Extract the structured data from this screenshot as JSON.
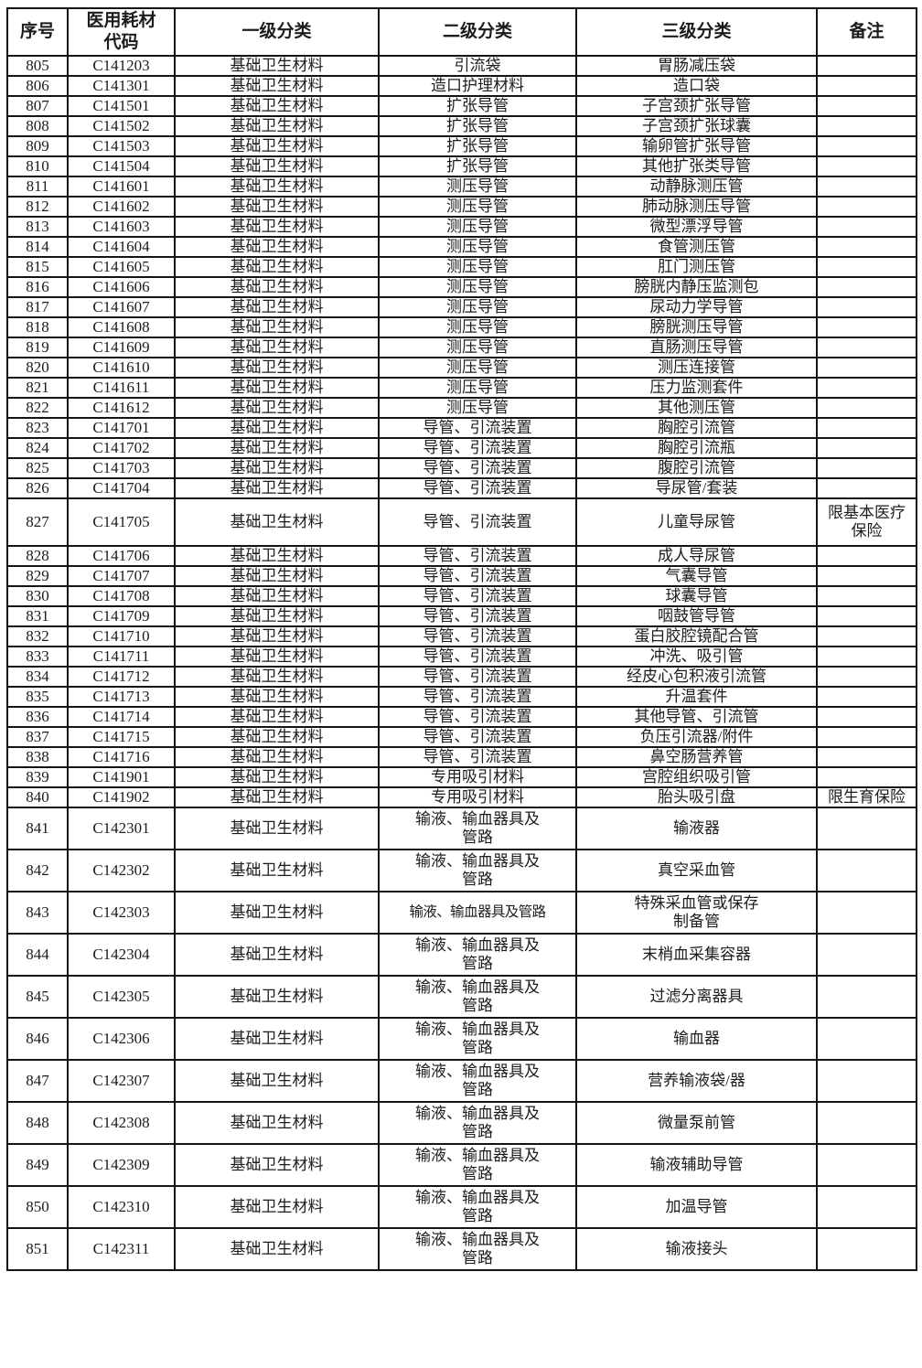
{
  "page": {
    "background": "#ffffff",
    "border_color": "#141414",
    "text_color": "#1c1c1c"
  },
  "table": {
    "columns": [
      "序号",
      "医用耗材\n代码",
      "一级分类",
      "二级分类",
      "三级分类",
      "备注"
    ],
    "rows": [
      {
        "no": "805",
        "code": "C141203",
        "l1": "基础卫生材料",
        "l2": "引流袋",
        "l3": "胃肠减压袋",
        "note": "",
        "size": "s"
      },
      {
        "no": "806",
        "code": "C141301",
        "l1": "基础卫生材料",
        "l2": "造口护理材料",
        "l3": "造口袋",
        "note": "",
        "size": "s"
      },
      {
        "no": "807",
        "code": "C141501",
        "l1": "基础卫生材料",
        "l2": "扩张导管",
        "l3": "子宫颈扩张导管",
        "note": "",
        "size": "s"
      },
      {
        "no": "808",
        "code": "C141502",
        "l1": "基础卫生材料",
        "l2": "扩张导管",
        "l3": "子宫颈扩张球囊",
        "note": "",
        "size": "s"
      },
      {
        "no": "809",
        "code": "C141503",
        "l1": "基础卫生材料",
        "l2": "扩张导管",
        "l3": "输卵管扩张导管",
        "note": "",
        "size": "s"
      },
      {
        "no": "810",
        "code": "C141504",
        "l1": "基础卫生材料",
        "l2": "扩张导管",
        "l3": "其他扩张类导管",
        "note": "",
        "size": "s"
      },
      {
        "no": "811",
        "code": "C141601",
        "l1": "基础卫生材料",
        "l2": "测压导管",
        "l3": "动静脉测压管",
        "note": "",
        "size": "s"
      },
      {
        "no": "812",
        "code": "C141602",
        "l1": "基础卫生材料",
        "l2": "测压导管",
        "l3": "肺动脉测压导管",
        "note": "",
        "size": "s"
      },
      {
        "no": "813",
        "code": "C141603",
        "l1": "基础卫生材料",
        "l2": "测压导管",
        "l3": "微型漂浮导管",
        "note": "",
        "size": "s"
      },
      {
        "no": "814",
        "code": "C141604",
        "l1": "基础卫生材料",
        "l2": "测压导管",
        "l3": "食管测压管",
        "note": "",
        "size": "s"
      },
      {
        "no": "815",
        "code": "C141605",
        "l1": "基础卫生材料",
        "l2": "测压导管",
        "l3": "肛门测压管",
        "note": "",
        "size": "s"
      },
      {
        "no": "816",
        "code": "C141606",
        "l1": "基础卫生材料",
        "l2": "测压导管",
        "l3": "膀胱内静压监测包",
        "note": "",
        "size": "s"
      },
      {
        "no": "817",
        "code": "C141607",
        "l1": "基础卫生材料",
        "l2": "测压导管",
        "l3": "尿动力学导管",
        "note": "",
        "size": "s"
      },
      {
        "no": "818",
        "code": "C141608",
        "l1": "基础卫生材料",
        "l2": "测压导管",
        "l3": "膀胱测压导管",
        "note": "",
        "size": "s"
      },
      {
        "no": "819",
        "code": "C141609",
        "l1": "基础卫生材料",
        "l2": "测压导管",
        "l3": "直肠测压导管",
        "note": "",
        "size": "s"
      },
      {
        "no": "820",
        "code": "C141610",
        "l1": "基础卫生材料",
        "l2": "测压导管",
        "l3": "测压连接管",
        "note": "",
        "size": "s"
      },
      {
        "no": "821",
        "code": "C141611",
        "l1": "基础卫生材料",
        "l2": "测压导管",
        "l3": "压力监测套件",
        "note": "",
        "size": "s"
      },
      {
        "no": "822",
        "code": "C141612",
        "l1": "基础卫生材料",
        "l2": "测压导管",
        "l3": "其他测压管",
        "note": "",
        "size": "s"
      },
      {
        "no": "823",
        "code": "C141701",
        "l1": "基础卫生材料",
        "l2": "导管、引流装置",
        "l3": "胸腔引流管",
        "note": "",
        "size": "s"
      },
      {
        "no": "824",
        "code": "C141702",
        "l1": "基础卫生材料",
        "l2": "导管、引流装置",
        "l3": "胸腔引流瓶",
        "note": "",
        "size": "s"
      },
      {
        "no": "825",
        "code": "C141703",
        "l1": "基础卫生材料",
        "l2": "导管、引流装置",
        "l3": "腹腔引流管",
        "note": "",
        "size": "s"
      },
      {
        "no": "826",
        "code": "C141704",
        "l1": "基础卫生材料",
        "l2": "导管、引流装置",
        "l3": "导尿管/套装",
        "note": "",
        "size": "s"
      },
      {
        "no": "827",
        "code": "C141705",
        "l1": "基础卫生材料",
        "l2": "导管、引流装置",
        "l3": "儿童导尿管",
        "note": "限基本医疗\n保险",
        "size": "d"
      },
      {
        "no": "828",
        "code": "C141706",
        "l1": "基础卫生材料",
        "l2": "导管、引流装置",
        "l3": "成人导尿管",
        "note": "",
        "size": "s"
      },
      {
        "no": "829",
        "code": "C141707",
        "l1": "基础卫生材料",
        "l2": "导管、引流装置",
        "l3": "气囊导管",
        "note": "",
        "size": "s"
      },
      {
        "no": "830",
        "code": "C141708",
        "l1": "基础卫生材料",
        "l2": "导管、引流装置",
        "l3": "球囊导管",
        "note": "",
        "size": "s"
      },
      {
        "no": "831",
        "code": "C141709",
        "l1": "基础卫生材料",
        "l2": "导管、引流装置",
        "l3": "咽鼓管导管",
        "note": "",
        "size": "s"
      },
      {
        "no": "832",
        "code": "C141710",
        "l1": "基础卫生材料",
        "l2": "导管、引流装置",
        "l3": "蛋白胶腔镜配合管",
        "note": "",
        "size": "s"
      },
      {
        "no": "833",
        "code": "C141711",
        "l1": "基础卫生材料",
        "l2": "导管、引流装置",
        "l3": "冲洗、吸引管",
        "note": "",
        "size": "s"
      },
      {
        "no": "834",
        "code": "C141712",
        "l1": "基础卫生材料",
        "l2": "导管、引流装置",
        "l3": "经皮心包积液引流管",
        "note": "",
        "size": "s"
      },
      {
        "no": "835",
        "code": "C141713",
        "l1": "基础卫生材料",
        "l2": "导管、引流装置",
        "l3": "升温套件",
        "note": "",
        "size": "s"
      },
      {
        "no": "836",
        "code": "C141714",
        "l1": "基础卫生材料",
        "l2": "导管、引流装置",
        "l3": "其他导管、引流管",
        "note": "",
        "size": "s"
      },
      {
        "no": "837",
        "code": "C141715",
        "l1": "基础卫生材料",
        "l2": "导管、引流装置",
        "l3": "负压引流器/附件",
        "note": "",
        "size": "s"
      },
      {
        "no": "838",
        "code": "C141716",
        "l1": "基础卫生材料",
        "l2": "导管、引流装置",
        "l3": "鼻空肠营养管",
        "note": "",
        "size": "s"
      },
      {
        "no": "839",
        "code": "C141901",
        "l1": "基础卫生材料",
        "l2": "专用吸引材料",
        "l3": "宫腔组织吸引管",
        "note": "",
        "size": "s"
      },
      {
        "no": "840",
        "code": "C141902",
        "l1": "基础卫生材料",
        "l2": "专用吸引材料",
        "l3": "胎头吸引盘",
        "note": "限生育保险",
        "size": "s"
      },
      {
        "no": "841",
        "code": "C142301",
        "l1": "基础卫生材料",
        "l2": "输液、输血器具及\n管路",
        "l3": "输液器",
        "note": "",
        "size": "t"
      },
      {
        "no": "842",
        "code": "C142302",
        "l1": "基础卫生材料",
        "l2": "输液、输血器具及\n管路",
        "l3": "真空采血管",
        "note": "",
        "size": "t"
      },
      {
        "no": "843",
        "code": "C142303",
        "l1": "基础卫生材料",
        "l2": "输液、输血器具及管路",
        "l3": "特殊采血管或保存\n制备管",
        "note": "",
        "size": "t",
        "l2fit": true
      },
      {
        "no": "844",
        "code": "C142304",
        "l1": "基础卫生材料",
        "l2": "输液、输血器具及\n管路",
        "l3": "末梢血采集容器",
        "note": "",
        "size": "t"
      },
      {
        "no": "845",
        "code": "C142305",
        "l1": "基础卫生材料",
        "l2": "输液、输血器具及\n管路",
        "l3": "过滤分离器具",
        "note": "",
        "size": "t"
      },
      {
        "no": "846",
        "code": "C142306",
        "l1": "基础卫生材料",
        "l2": "输液、输血器具及\n管路",
        "l3": "输血器",
        "note": "",
        "size": "t"
      },
      {
        "no": "847",
        "code": "C142307",
        "l1": "基础卫生材料",
        "l2": "输液、输血器具及\n管路",
        "l3": "营养输液袋/器",
        "note": "",
        "size": "t"
      },
      {
        "no": "848",
        "code": "C142308",
        "l1": "基础卫生材料",
        "l2": "输液、输血器具及\n管路",
        "l3": "微量泵前管",
        "note": "",
        "size": "t"
      },
      {
        "no": "849",
        "code": "C142309",
        "l1": "基础卫生材料",
        "l2": "输液、输血器具及\n管路",
        "l3": "输液辅助导管",
        "note": "",
        "size": "t"
      },
      {
        "no": "850",
        "code": "C142310",
        "l1": "基础卫生材料",
        "l2": "输液、输血器具及\n管路",
        "l3": "加温导管",
        "note": "",
        "size": "t"
      },
      {
        "no": "851",
        "code": "C142311",
        "l1": "基础卫生材料",
        "l2": "输液、输血器具及\n管路",
        "l3": "输液接头",
        "note": "",
        "size": "t"
      }
    ]
  }
}
